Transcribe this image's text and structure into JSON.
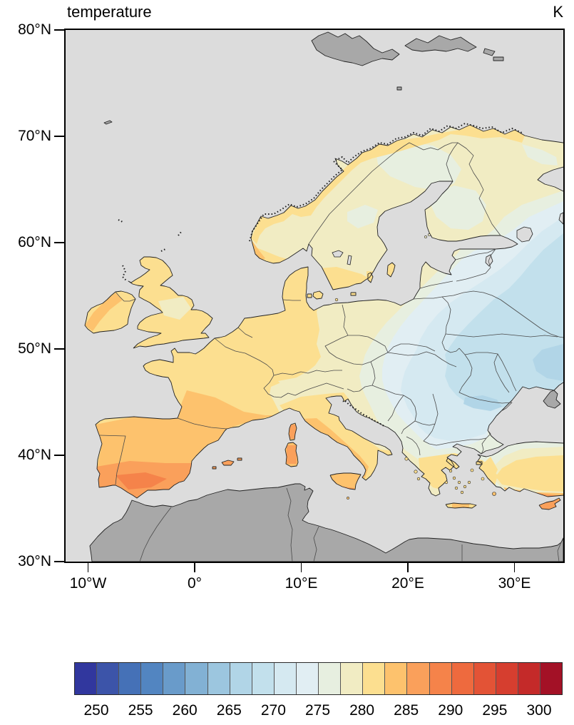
{
  "title": "temperature",
  "units": "K",
  "map": {
    "lat_ticks": [
      {
        "label": "80°N",
        "deg": 80
      },
      {
        "label": "70°N",
        "deg": 70
      },
      {
        "label": "60°N",
        "deg": 60
      },
      {
        "label": "50°N",
        "deg": 50
      },
      {
        "label": "40°N",
        "deg": 40
      },
      {
        "label": "30°N",
        "deg": 30
      }
    ],
    "lon_ticks": [
      {
        "label": "10°W",
        "deg": -10
      },
      {
        "label": "0°",
        "deg": 0
      },
      {
        "label": "10°E",
        "deg": 10
      },
      {
        "label": "20°E",
        "deg": 20
      },
      {
        "label": "30°E",
        "deg": 30
      }
    ]
  },
  "colorbar": {
    "tick_labels": [
      "250",
      "255",
      "260",
      "265",
      "270",
      "275",
      "280",
      "285",
      "290",
      "295",
      "300"
    ],
    "level_min": 247.5,
    "level_step": 2.5,
    "n_segments": 22,
    "colors": [
      "#31379e",
      "#3c54a9",
      "#4571b7",
      "#5285c1",
      "#699bca",
      "#82b1d4",
      "#9cc6df",
      "#b1d5e7",
      "#c2e0ec",
      "#d5e9f1",
      "#e1eef3",
      "#e7efe0",
      "#f1ecc3",
      "#fcdf90",
      "#fdc26d",
      "#faa05b",
      "#f5834a",
      "#ee6a3e",
      "#e35336",
      "#d63e2f",
      "#c42a29",
      "#a31126"
    ]
  },
  "colors": {
    "sea": "#dcdcdc",
    "nodata_land": "#a8a8a8",
    "coast": "#222222",
    "border": "#4a4a4a",
    "frame": "#000000",
    "background": "#ffffff"
  },
  "field_summary": {
    "type": "filled-contour temperature map",
    "variable": "temperature",
    "units": "K",
    "domain": {
      "lon_deg_e": [
        -12.5,
        34.7
      ],
      "lat_deg_n": [
        30,
        80
      ]
    },
    "contour_interval_k": 2.5,
    "pattern": [
      {
        "region": "southern Iberia",
        "approx_k": [
          285,
          292.5
        ]
      },
      {
        "region": "northern Iberia / S France / Italy / Med islands",
        "approx_k": [
          280,
          287.5
        ]
      },
      {
        "region": "France / UK / Ireland / Denmark",
        "approx_k": [
          277.5,
          285
        ]
      },
      {
        "region": "Scandinavia / Finland",
        "approx_k": [
          272.5,
          282.5
        ]
      },
      {
        "region": "central Europe (Germany, Czechia, Austria)",
        "approx_k": [
          272.5,
          282.5
        ]
      },
      {
        "region": "eastern Europe / Balkans / western Russia",
        "approx_k": [
          265,
          272.5
        ]
      },
      {
        "region": "southern Romania (coldest patch)",
        "approx_k": [
          265,
          267.5
        ]
      },
      {
        "region": "Turkey (NW cool, S coast warm)",
        "approx_k": [
          275,
          287.5
        ]
      },
      {
        "region": "North Africa / Middle East / Svalbard / seas",
        "approx_k": null,
        "note": "no data (gray)"
      }
    ]
  }
}
